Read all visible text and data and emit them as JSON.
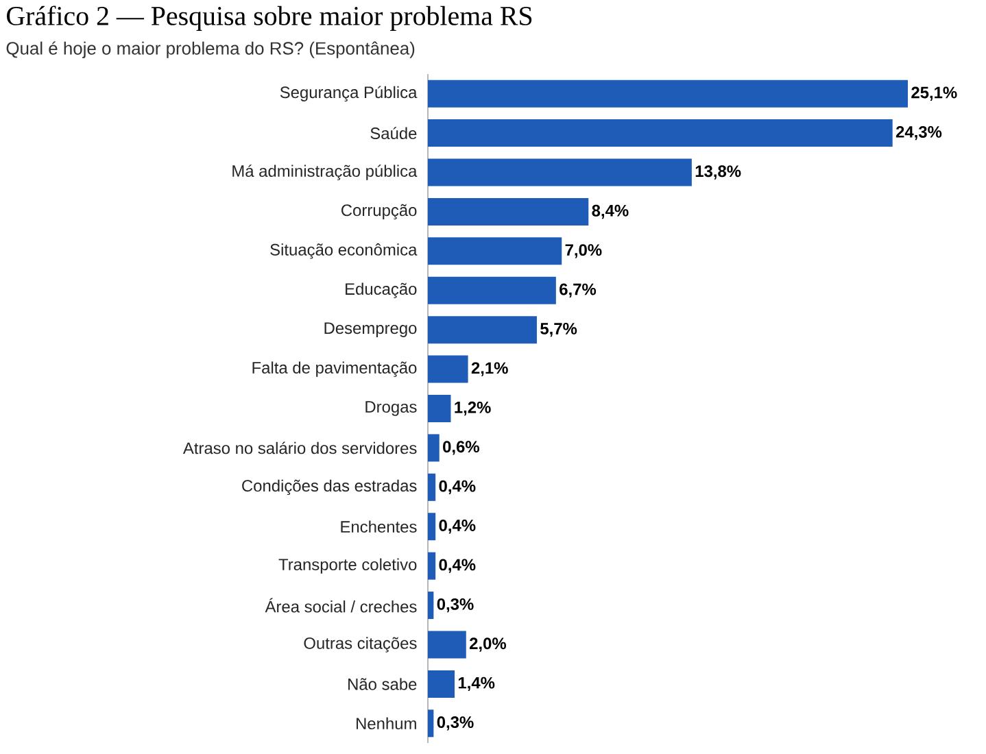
{
  "chart_data": {
    "type": "bar",
    "orientation": "horizontal",
    "title": "Gráfico 2 — Pesquisa sobre maior problema RS",
    "subtitle": "Qual é hoje o maior problema do RS? (Espontânea)",
    "categories": [
      "Segurança Pública",
      "Saúde",
      "Má administração pública",
      "Corrupção",
      "Situação econômica",
      "Educação",
      "Desemprego",
      "Falta de pavimentação",
      "Drogas",
      "Atraso no salário dos servidores",
      "Condições das estradas",
      "Enchentes",
      "Transporte coletivo",
      "Área social / creches",
      "Outras citações",
      "Não sabe",
      "Nenhum"
    ],
    "values": [
      25.1,
      24.3,
      13.8,
      8.4,
      7.0,
      6.7,
      5.7,
      2.1,
      1.2,
      0.6,
      0.4,
      0.4,
      0.4,
      0.3,
      2.0,
      1.4,
      0.3
    ],
    "value_labels": [
      "25,1%",
      "24,3%",
      "13,8%",
      "8,4%",
      "7,0%",
      "6,7%",
      "5,7%",
      "2,1%",
      "1,2%",
      "0,6%",
      "0,4%",
      "0,4%",
      "0,4%",
      "0,3%",
      "2,0%",
      "1,4%",
      "0,3%"
    ],
    "color": "#1f5cb8"
  }
}
